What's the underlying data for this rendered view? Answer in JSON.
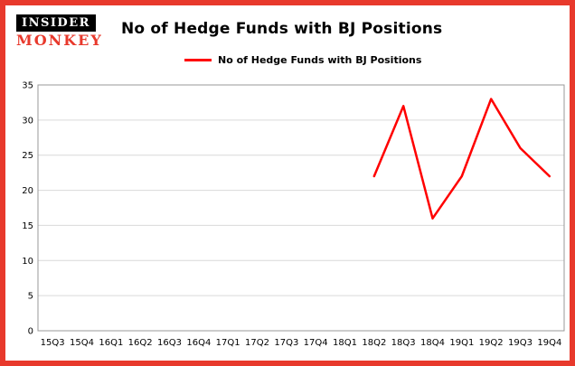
{
  "brand": {
    "line1": "INSIDER",
    "line2": "MONKEY"
  },
  "header": {
    "title": "No of Hedge Funds with BJ Positions"
  },
  "legend": {
    "label": "No of Hedge Funds with BJ Positions"
  },
  "colors": {
    "frame_border": "#e8392c",
    "logo_red": "#e8392c",
    "line": "#ff0000",
    "grid": "#d9d9d9",
    "axis": "#999999"
  },
  "chart_data": {
    "type": "line",
    "title": "No of Hedge Funds with BJ Positions",
    "xlabel": "",
    "ylabel": "",
    "categories": [
      "15Q3",
      "15Q4",
      "16Q1",
      "16Q2",
      "16Q3",
      "16Q4",
      "17Q1",
      "17Q2",
      "17Q3",
      "17Q4",
      "18Q1",
      "18Q2",
      "18Q3",
      "18Q4",
      "19Q1",
      "19Q2",
      "19Q3",
      "19Q4"
    ],
    "series": [
      {
        "name": "No of Hedge Funds with BJ Positions",
        "color": "#ff0000",
        "values": [
          null,
          null,
          null,
          null,
          null,
          null,
          null,
          null,
          null,
          null,
          null,
          22,
          32,
          16,
          22,
          33,
          26,
          22
        ]
      }
    ],
    "ylim": [
      0,
      35
    ],
    "yticks": [
      0,
      5,
      10,
      15,
      20,
      25,
      30,
      35
    ],
    "ytick_interval": 5,
    "grid": true,
    "legend_position": "top-center"
  }
}
